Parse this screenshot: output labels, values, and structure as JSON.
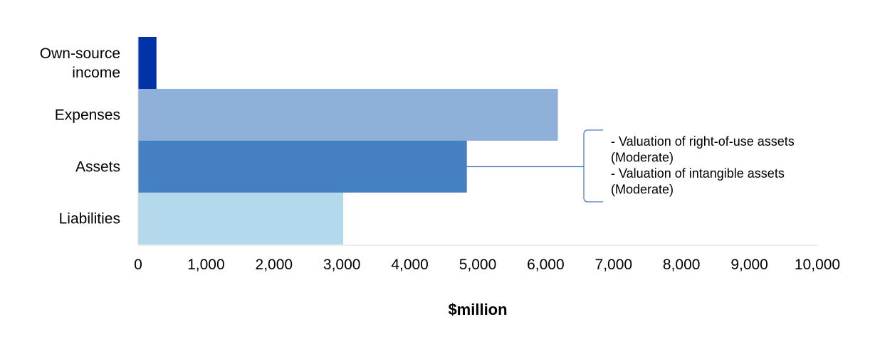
{
  "chart_data": {
    "type": "bar",
    "orientation": "horizontal",
    "title": "",
    "xlabel": "$million",
    "ylabel": "",
    "xlim": [
      0,
      10000
    ],
    "x_ticks": [
      0,
      1000,
      2000,
      3000,
      4000,
      5000,
      6000,
      7000,
      8000,
      9000,
      10000
    ],
    "x_tick_labels": [
      "0",
      "1,000",
      "2,000",
      "3,000",
      "4,000",
      "5,000",
      "6,000",
      "7,000",
      "8,000",
      "9,000",
      "10,000"
    ],
    "grid": false,
    "categories": [
      {
        "lines": [
          "Own-source",
          "income"
        ]
      },
      {
        "lines": [
          "Expenses"
        ]
      },
      {
        "lines": [
          "Assets"
        ]
      },
      {
        "lines": [
          "Liabilities"
        ]
      }
    ],
    "values": [
      270,
      6180,
      4840,
      3020
    ],
    "colors": [
      "#0033a7",
      "#8fb0d8",
      "#4580c3",
      "#b4d9ec"
    ],
    "annotation": {
      "target_category": "Assets",
      "bracket_color": "#4a7dbe",
      "lines": [
        "- Valuation of right-of-use assets",
        "(Moderate)",
        "- Valuation of intangible assets",
        "(Moderate)"
      ]
    }
  }
}
